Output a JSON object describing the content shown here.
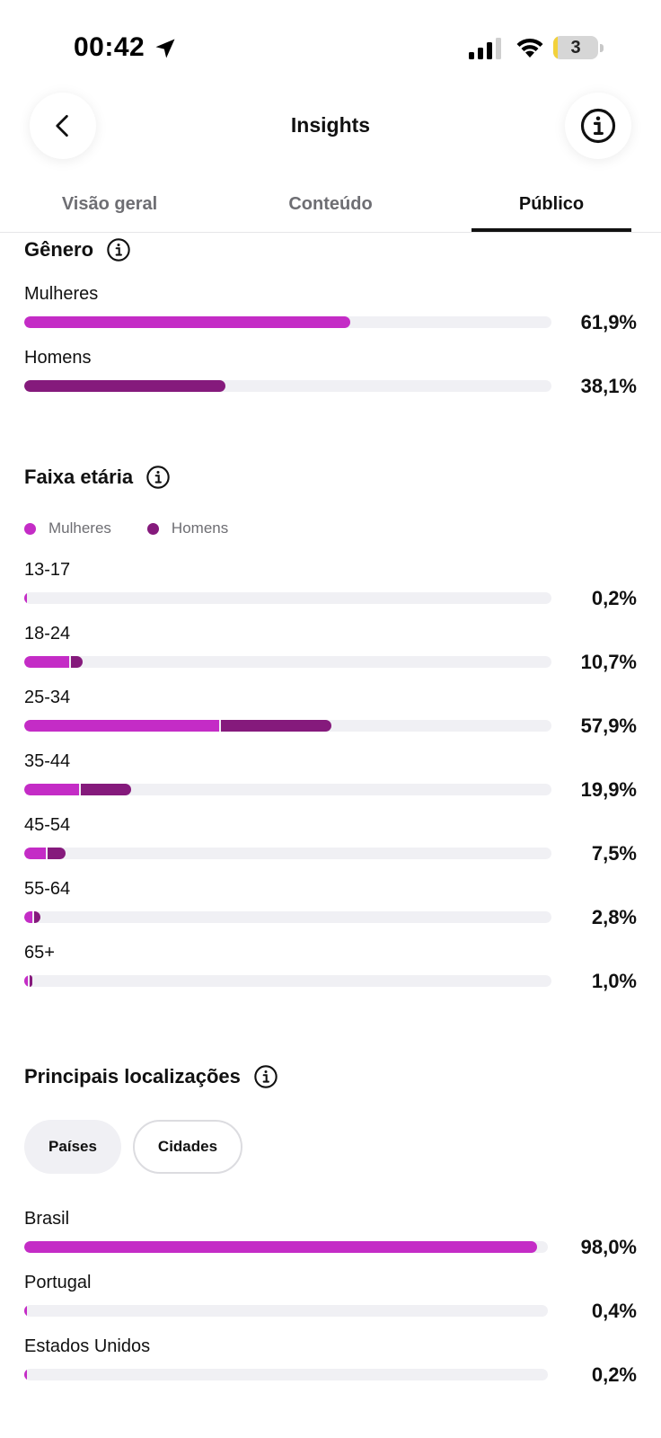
{
  "status_bar": {
    "time": "00:42",
    "battery": "3",
    "battery_level": 0.1
  },
  "header": {
    "title": "Insights"
  },
  "tabs": [
    {
      "label": "Visão geral",
      "active": false
    },
    {
      "label": "Conteúdo",
      "active": false
    },
    {
      "label": "Público",
      "active": true
    }
  ],
  "colors": {
    "women": "#c42cc6",
    "men": "#851a7c",
    "track": "#f0f0f4"
  },
  "gender": {
    "title": "Gênero",
    "rows": [
      {
        "label": "Mulheres",
        "value": "61,9%",
        "pct": 61.9
      },
      {
        "label": "Homens",
        "value": "38,1%",
        "pct": 38.1
      }
    ]
  },
  "age": {
    "title": "Faixa etária",
    "legend": {
      "women": "Mulheres",
      "men": "Homens"
    },
    "rows": [
      {
        "label": "13-17",
        "value": "0,2%",
        "total": 0.2,
        "women": 0.2,
        "men": 0.0
      },
      {
        "label": "18-24",
        "value": "10,7%",
        "total": 10.7,
        "women": 8.6,
        "men": 2.1
      },
      {
        "label": "25-34",
        "value": "57,9%",
        "total": 57.9,
        "women": 37.0,
        "men": 20.9
      },
      {
        "label": "35-44",
        "value": "19,9%",
        "total": 19.9,
        "women": 10.4,
        "men": 9.5
      },
      {
        "label": "45-54",
        "value": "7,5%",
        "total": 7.5,
        "women": 4.1,
        "men": 3.4
      },
      {
        "label": "55-64",
        "value": "2,8%",
        "total": 2.8,
        "women": 1.6,
        "men": 1.2
      },
      {
        "label": "65+",
        "value": "1,0%",
        "total": 1.0,
        "women": 0.6,
        "men": 0.4
      }
    ]
  },
  "locations": {
    "title": "Principais localizações",
    "filters": [
      {
        "label": "Países",
        "active": true
      },
      {
        "label": "Cidades",
        "active": false
      }
    ],
    "rows": [
      {
        "label": "Brasil",
        "value": "98,0%",
        "pct": 98.0
      },
      {
        "label": "Portugal",
        "value": "0,4%",
        "pct": 0.4
      },
      {
        "label": "Estados Unidos",
        "value": "0,2%",
        "pct": 0.2
      }
    ]
  }
}
